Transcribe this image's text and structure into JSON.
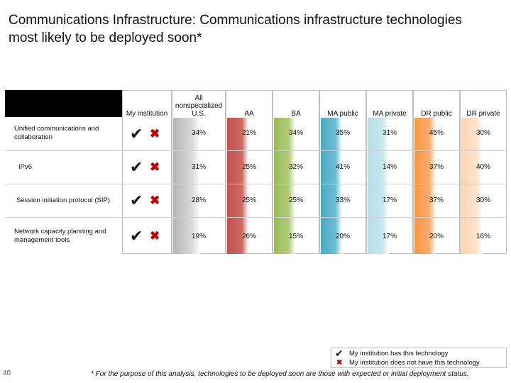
{
  "title": "Communications Infrastructure: Communications infrastructure technologies most likely to be deployed soon*",
  "page_number": "40",
  "footnote": "* For the purpose of this analysis, technologies to be deployed soon are those with expected or initial deployment status.",
  "legend": {
    "has": "My institution has this technology",
    "has_not": "My institution does not have this technology"
  },
  "colors": {
    "all": "#bdbdbd",
    "aa": "#c0504d",
    "ba": "#9bbb59",
    "ma_public": "#4bacc6",
    "ma_private": "#b7dee8",
    "dr_public": "#f79646",
    "dr_private": "#fcd5b4",
    "cross": "#c00000"
  },
  "chart_data": {
    "type": "table",
    "columns": [
      "My institution",
      "All nonspecialized U.S.",
      "AA",
      "BA",
      "MA public",
      "MA private",
      "DR public",
      "DR private"
    ],
    "rows": [
      {
        "label": "Unified communications and collaboration",
        "values": [
          "34%",
          "21%",
          "34%",
          "35%",
          "31%",
          "45%",
          "30%"
        ]
      },
      {
        "label": "IPv6",
        "values": [
          "31%",
          "25%",
          "32%",
          "41%",
          "14%",
          "37%",
          "40%"
        ]
      },
      {
        "label": "Session initiation protocol (SIP)",
        "values": [
          "28%",
          "25%",
          "25%",
          "33%",
          "17%",
          "37%",
          "30%"
        ]
      },
      {
        "label": "Network capacity planning and management tools",
        "values": [
          "19%",
          "26%",
          "15%",
          "20%",
          "17%",
          "20%",
          "16%"
        ]
      }
    ]
  }
}
